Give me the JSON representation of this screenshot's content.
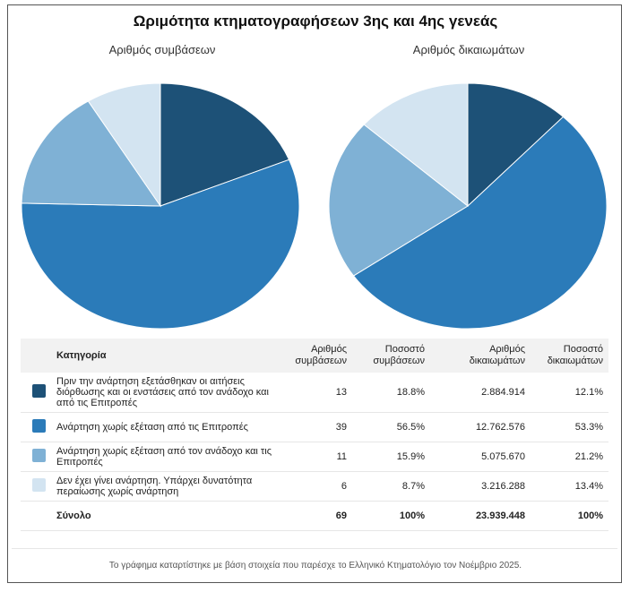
{
  "chart_data": {
    "type": "pie",
    "title": "Ωριμότητα κτηματογραφήσεων 3ης και 4ης γενεάς",
    "categories": [
      "Πριν την ανάρτηση εξετάσθηκαν οι αιτήσεις διόρθωσης και οι ενστάσεις από τον ανάδοχο και από τις Επιτροπές",
      "Ανάρτηση χωρίς εξέταση από τις Επιτροπές",
      "Ανάρτηση χωρίς εξέταση από τον ανάδοχο και τις Επιτροπές",
      "Δεν έχει γίνει ανάρτηση. Υπάρχει δυνατότητα περαίωσης χωρίς ανάρτηση"
    ],
    "colors": [
      "#1d5177",
      "#2b7bb9",
      "#7fb1d5",
      "#d3e4f1"
    ],
    "series": [
      {
        "name": "Αριθμός συμβάσεων",
        "values": [
          13,
          39,
          11,
          6
        ]
      },
      {
        "name": "Αριθμός δικαιωμάτων",
        "values": [
          2884914,
          12762576,
          5075670,
          3216288
        ]
      }
    ]
  },
  "table": {
    "headers": [
      "Κατηγορία",
      "Αριθμός συμβάσεων",
      "Ποσοστό συμβάσεων",
      "Αριθμός δικαιωμάτων",
      "Ποσοστό δικαιωμάτων"
    ],
    "rows": [
      [
        "Πριν την ανάρτηση εξετάσθηκαν οι αιτήσεις διόρθωσης και οι ενστάσεις από τον ανάδοχο και από τις Επιτροπές",
        "13",
        "18.8%",
        "2.884.914",
        "12.1%"
      ],
      [
        "Ανάρτηση χωρίς εξέταση από τις Επιτροπές",
        "39",
        "56.5%",
        "12.762.576",
        "53.3%"
      ],
      [
        "Ανάρτηση χωρίς εξέταση από τον ανάδοχο και τις Επιτροπές",
        "11",
        "15.9%",
        "5.075.670",
        "21.2%"
      ],
      [
        "Δεν έχει γίνει ανάρτηση. Υπάρχει δυνατότητα περαίωσης χωρίς ανάρτηση",
        "6",
        "8.7%",
        "3.216.288",
        "13.4%"
      ]
    ],
    "total": [
      "Σύνολο",
      "69",
      "100%",
      "23.939.448",
      "100%"
    ]
  },
  "footer": "Το γράφημα καταρτίστηκε με βάση στοιχεία που παρέσχε το Ελληνικό Κτηματολόγιο τον Νοέμβριο 2025."
}
